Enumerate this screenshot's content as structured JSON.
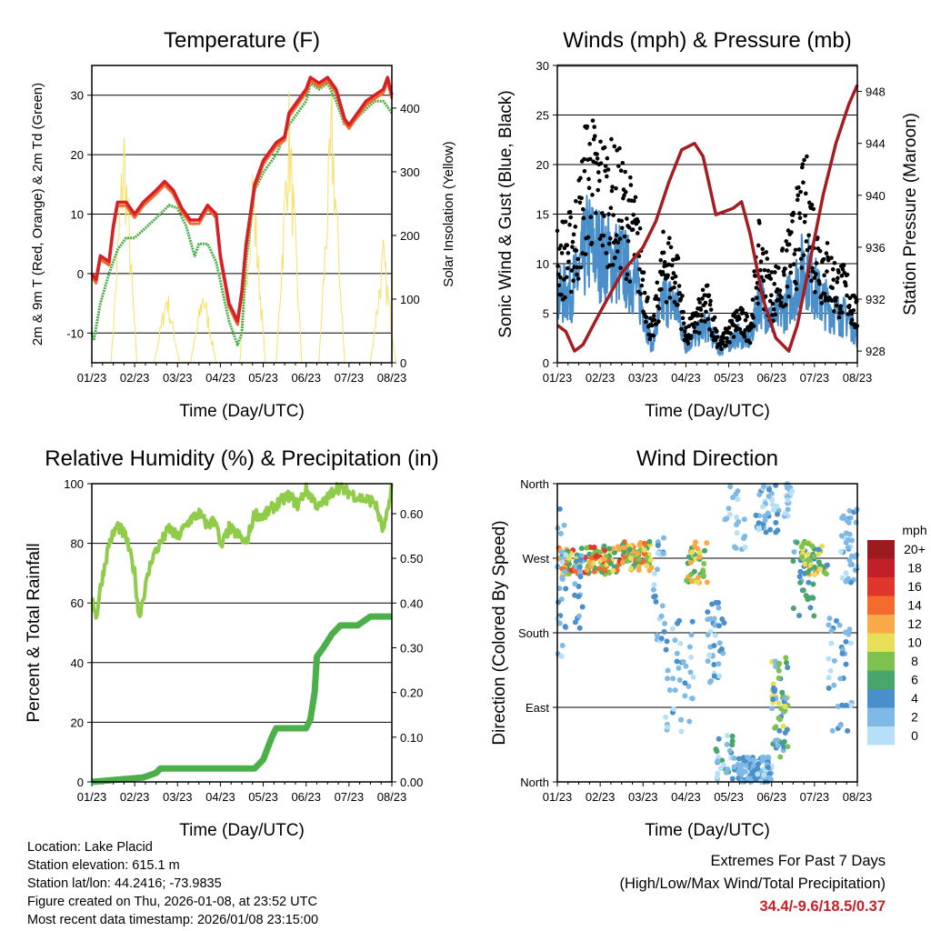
{
  "footer": {
    "location": "Location: Lake Placid",
    "elevation": "Station elevation: 615.1 m",
    "latlon": "Station lat/lon: 44.2416; -73.9835",
    "created": "Figure created on Thu, 2026-01-08, at 23:52 UTC",
    "recent": "Most recent data timestamp: 2026/01/08 23:15:00"
  },
  "extremes": {
    "title": "Extremes For Past 7 Days",
    "subtitle": "(High/Low/Max Wind/Total Precipitation)",
    "values": "34.4/-9.6/18.5/0.37"
  },
  "chart_data": [
    {
      "type": "line",
      "title": "Temperature (F)",
      "xlabel": "Time (Day/UTC)",
      "ylabel": "2m & 9m T (Red, Orange) & 2m Td (Green)",
      "ylabel_right": "Solar Insolation (Yellow)",
      "xticks": [
        "01/23",
        "02/23",
        "03/23",
        "04/23",
        "05/23",
        "06/23",
        "07/23",
        "08/23"
      ],
      "xlim": [
        0,
        7
      ],
      "ylim": [
        -15,
        35
      ],
      "yticks": [
        -10,
        0,
        10,
        20,
        30
      ],
      "ylim_right": [
        0,
        467
      ],
      "yticks_right": [
        0,
        100,
        200,
        300,
        400
      ],
      "series": [
        {
          "name": "2m T",
          "color": "#d62027",
          "points": [
            [
              0,
              0
            ],
            [
              0.1,
              -1
            ],
            [
              0.2,
              3
            ],
            [
              0.4,
              2
            ],
            [
              0.5,
              8
            ],
            [
              0.6,
              12
            ],
            [
              0.8,
              12
            ],
            [
              1,
              10
            ],
            [
              1.2,
              12
            ],
            [
              1.5,
              14
            ],
            [
              1.7,
              15.5
            ],
            [
              1.9,
              14
            ],
            [
              2.1,
              11
            ],
            [
              2.3,
              9
            ],
            [
              2.5,
              9
            ],
            [
              2.7,
              11.5
            ],
            [
              2.9,
              10
            ],
            [
              3.0,
              3
            ],
            [
              3.2,
              -5
            ],
            [
              3.4,
              -8
            ],
            [
              3.5,
              -3
            ],
            [
              3.6,
              5
            ],
            [
              3.8,
              15
            ],
            [
              4,
              19
            ],
            [
              4.3,
              22
            ],
            [
              4.5,
              23
            ],
            [
              4.6,
              27
            ],
            [
              4.8,
              29
            ],
            [
              5,
              31
            ],
            [
              5.1,
              33
            ],
            [
              5.3,
              32
            ],
            [
              5.5,
              33
            ],
            [
              5.7,
              31
            ],
            [
              5.9,
              26
            ],
            [
              6.0,
              25
            ],
            [
              6.2,
              27
            ],
            [
              6.4,
              29
            ],
            [
              6.6,
              30
            ],
            [
              6.8,
              31
            ],
            [
              6.9,
              33
            ],
            [
              7,
              30
            ]
          ]
        },
        {
          "name": "2m Td",
          "color": "#4bb04a",
          "points": [
            [
              0,
              -10
            ],
            [
              0.05,
              -11
            ],
            [
              0.2,
              -5
            ],
            [
              0.4,
              0
            ],
            [
              0.6,
              4
            ],
            [
              0.8,
              6
            ],
            [
              1,
              6
            ],
            [
              1.3,
              8
            ],
            [
              1.6,
              10
            ],
            [
              1.8,
              11.5
            ],
            [
              2.0,
              11
            ],
            [
              2.2,
              8
            ],
            [
              2.4,
              3
            ],
            [
              2.5,
              5
            ],
            [
              2.7,
              5
            ],
            [
              2.9,
              2
            ],
            [
              3.2,
              -8
            ],
            [
              3.4,
              -12
            ],
            [
              3.5,
              -10
            ],
            [
              3.6,
              2
            ],
            [
              3.8,
              14
            ],
            [
              4,
              17
            ],
            [
              4.3,
              20
            ],
            [
              4.6,
              25
            ],
            [
              4.8,
              27
            ],
            [
              5.0,
              29
            ],
            [
              5.1,
              32
            ],
            [
              5.3,
              31
            ],
            [
              5.5,
              32
            ],
            [
              5.7,
              29
            ],
            [
              5.9,
              25
            ],
            [
              6.0,
              25
            ],
            [
              6.3,
              27
            ],
            [
              6.6,
              29
            ],
            [
              6.8,
              29
            ],
            [
              7,
              27
            ]
          ]
        }
      ],
      "solar_peaks": [
        [
          0.75,
          400
        ],
        [
          1.75,
          125
        ],
        [
          2.6,
          130
        ],
        [
          3.75,
          330
        ],
        [
          4.6,
          440
        ],
        [
          5.6,
          440
        ],
        [
          6.8,
          200
        ]
      ]
    },
    {
      "type": "line+scatter",
      "title": "Winds (mph) & Pressure (mb)",
      "xlabel": "Time (Day/UTC)",
      "ylabel": "Sonic Wind & Gust (Blue, Black)",
      "ylabel_right": "Station Pressure (Maroon)",
      "xticks": [
        "01/23",
        "02/23",
        "03/23",
        "04/23",
        "05/23",
        "06/23",
        "07/23",
        "08/23"
      ],
      "xlim": [
        0,
        7
      ],
      "ylim": [
        0,
        30
      ],
      "yticks": [
        0,
        5,
        10,
        15,
        20,
        25,
        30
      ],
      "ylim_right": [
        927.1,
        950
      ],
      "yticks_right": [
        928,
        932,
        936,
        940,
        944,
        948
      ],
      "gust_envelope": [
        [
          0,
          12
        ],
        [
          0.3,
          13
        ],
        [
          0.5,
          16
        ],
        [
          0.7,
          22
        ],
        [
          1,
          20
        ],
        [
          1.5,
          18
        ],
        [
          1.8,
          15
        ],
        [
          2,
          10
        ],
        [
          2.2,
          3
        ],
        [
          2.5,
          12
        ],
        [
          2.8,
          10
        ],
        [
          3,
          3
        ],
        [
          3.5,
          7
        ],
        [
          3.8,
          2
        ],
        [
          4.2,
          5
        ],
        [
          4.5,
          4
        ],
        [
          4.7,
          12
        ],
        [
          5,
          8
        ],
        [
          5.3,
          10
        ],
        [
          5.6,
          15
        ],
        [
          5.8,
          18
        ],
        [
          6.1,
          12
        ],
        [
          6.5,
          9
        ],
        [
          6.8,
          8
        ],
        [
          7,
          5
        ]
      ],
      "pressure": [
        [
          0,
          930
        ],
        [
          0.2,
          929.5
        ],
        [
          0.4,
          928
        ],
        [
          0.6,
          928.5
        ],
        [
          1,
          931
        ],
        [
          1.5,
          934
        ],
        [
          2,
          936
        ],
        [
          2.3,
          938
        ],
        [
          2.6,
          941
        ],
        [
          2.9,
          943.5
        ],
        [
          3.2,
          944
        ],
        [
          3.4,
          943
        ],
        [
          3.7,
          938.5
        ],
        [
          4.1,
          939
        ],
        [
          4.3,
          939.5
        ],
        [
          4.5,
          937
        ],
        [
          4.8,
          932
        ],
        [
          5.1,
          929
        ],
        [
          5.4,
          928
        ],
        [
          5.6,
          930
        ],
        [
          5.9,
          935
        ],
        [
          6.2,
          940
        ],
        [
          6.5,
          944
        ],
        [
          6.8,
          947
        ],
        [
          7,
          948.5
        ]
      ]
    },
    {
      "type": "line",
      "title": "Relative Humidity (%) & Precipitation (in)",
      "xlabel": "Time (Day/UTC)",
      "ylabel": "Percent & Total Rainfall",
      "xticks": [
        "01/23",
        "02/23",
        "03/23",
        "04/23",
        "05/23",
        "06/23",
        "07/23",
        "08/23"
      ],
      "xlim": [
        0,
        7
      ],
      "ylim": [
        0,
        100
      ],
      "yticks": [
        0,
        20,
        40,
        60,
        80,
        100
      ],
      "ylim_right": [
        0,
        0.667
      ],
      "yticks_right": [
        "0.00",
        "0.10",
        "0.20",
        "0.30",
        "0.40",
        "0.50",
        "0.60"
      ],
      "rh": [
        [
          0,
          63
        ],
        [
          0.1,
          55
        ],
        [
          0.2,
          65
        ],
        [
          0.4,
          80
        ],
        [
          0.6,
          86
        ],
        [
          0.8,
          82
        ],
        [
          1.0,
          70
        ],
        [
          1.1,
          55
        ],
        [
          1.2,
          62
        ],
        [
          1.4,
          75
        ],
        [
          1.6,
          80
        ],
        [
          1.8,
          85
        ],
        [
          2,
          82
        ],
        [
          2.3,
          88
        ],
        [
          2.5,
          90
        ],
        [
          2.7,
          86
        ],
        [
          2.9,
          88
        ],
        [
          3.0,
          78
        ],
        [
          3.2,
          85
        ],
        [
          3.4,
          83
        ],
        [
          3.6,
          80
        ],
        [
          3.8,
          90
        ],
        [
          4.0,
          89
        ],
        [
          4.3,
          93
        ],
        [
          4.6,
          96
        ],
        [
          4.8,
          93
        ],
        [
          5.0,
          98
        ],
        [
          5.3,
          92
        ],
        [
          5.5,
          95
        ],
        [
          5.7,
          99
        ],
        [
          6.0,
          97
        ],
        [
          6.3,
          95
        ],
        [
          6.6,
          94
        ],
        [
          6.8,
          84
        ],
        [
          6.9,
          90
        ],
        [
          7,
          100
        ]
      ],
      "precip": [
        [
          0,
          0
        ],
        [
          1.2,
          0.01
        ],
        [
          1.5,
          0.02
        ],
        [
          1.6,
          0.03
        ],
        [
          3.8,
          0.03
        ],
        [
          4.0,
          0.05
        ],
        [
          4.2,
          0.1
        ],
        [
          4.3,
          0.12
        ],
        [
          5.0,
          0.12
        ],
        [
          5.1,
          0.14
        ],
        [
          5.2,
          0.2
        ],
        [
          5.25,
          0.28
        ],
        [
          5.4,
          0.3
        ],
        [
          5.6,
          0.33
        ],
        [
          5.8,
          0.35
        ],
        [
          6.2,
          0.35
        ],
        [
          6.5,
          0.37
        ],
        [
          7,
          0.37
        ]
      ],
      "colors": {
        "rh": "#8fcc4a",
        "precip": "#4bb04a"
      }
    },
    {
      "type": "scatter",
      "title": "Wind Direction",
      "xlabel": "Time (Day/UTC)",
      "ylabel": "Direction (Colored By Speed)",
      "xticks": [
        "01/23",
        "02/23",
        "03/23",
        "04/23",
        "05/23",
        "06/23",
        "07/23",
        "08/23"
      ],
      "xlim": [
        0,
        7
      ],
      "ylim": [
        0,
        360
      ],
      "yticks": [
        "North",
        "East",
        "South",
        "West",
        "North"
      ],
      "clusters": [
        [
          0,
          1.5,
          250,
          285,
          6,
          18,
          120
        ],
        [
          0,
          0.2,
          150,
          330,
          1,
          5,
          25
        ],
        [
          0.4,
          0.6,
          180,
          280,
          2,
          6,
          20
        ],
        [
          1.5,
          2.2,
          255,
          290,
          6,
          16,
          80
        ],
        [
          2.2,
          2.5,
          170,
          300,
          1,
          5,
          25
        ],
        [
          2.5,
          3.2,
          60,
          200,
          1,
          5,
          40
        ],
        [
          3.0,
          3.5,
          240,
          290,
          6,
          14,
          40
        ],
        [
          3.5,
          3.9,
          120,
          220,
          1,
          6,
          35
        ],
        [
          3.7,
          4.2,
          0,
          60,
          1,
          8,
          30
        ],
        [
          3.9,
          4.4,
          280,
          360,
          1,
          4,
          20
        ],
        [
          4.2,
          5.0,
          0,
          30,
          1,
          6,
          120
        ],
        [
          4.6,
          5.2,
          300,
          360,
          1,
          5,
          40
        ],
        [
          5.0,
          5.4,
          30,
          150,
          2,
          12,
          60
        ],
        [
          5.3,
          5.5,
          320,
          360,
          1,
          4,
          20
        ],
        [
          5.5,
          6.0,
          200,
          290,
          3,
          8,
          30
        ],
        [
          5.7,
          6.3,
          250,
          290,
          5,
          14,
          50
        ],
        [
          6.3,
          6.9,
          60,
          200,
          1,
          5,
          35
        ],
        [
          6.6,
          7,
          240,
          330,
          1,
          5,
          40
        ]
      ],
      "colorbar": {
        "label": "mph",
        "ticks": [
          "20+",
          "18",
          "16",
          "14",
          "12",
          "10",
          "8",
          "6",
          "4",
          "2",
          "0"
        ],
        "colors": [
          "#9b1b1e",
          "#c1202a",
          "#e0352b",
          "#f26a2c",
          "#f9a947",
          "#e8df59",
          "#7dc24f",
          "#48a66c",
          "#4a8fc9",
          "#7fb9e6",
          "#b6e0f7"
        ]
      }
    }
  ]
}
